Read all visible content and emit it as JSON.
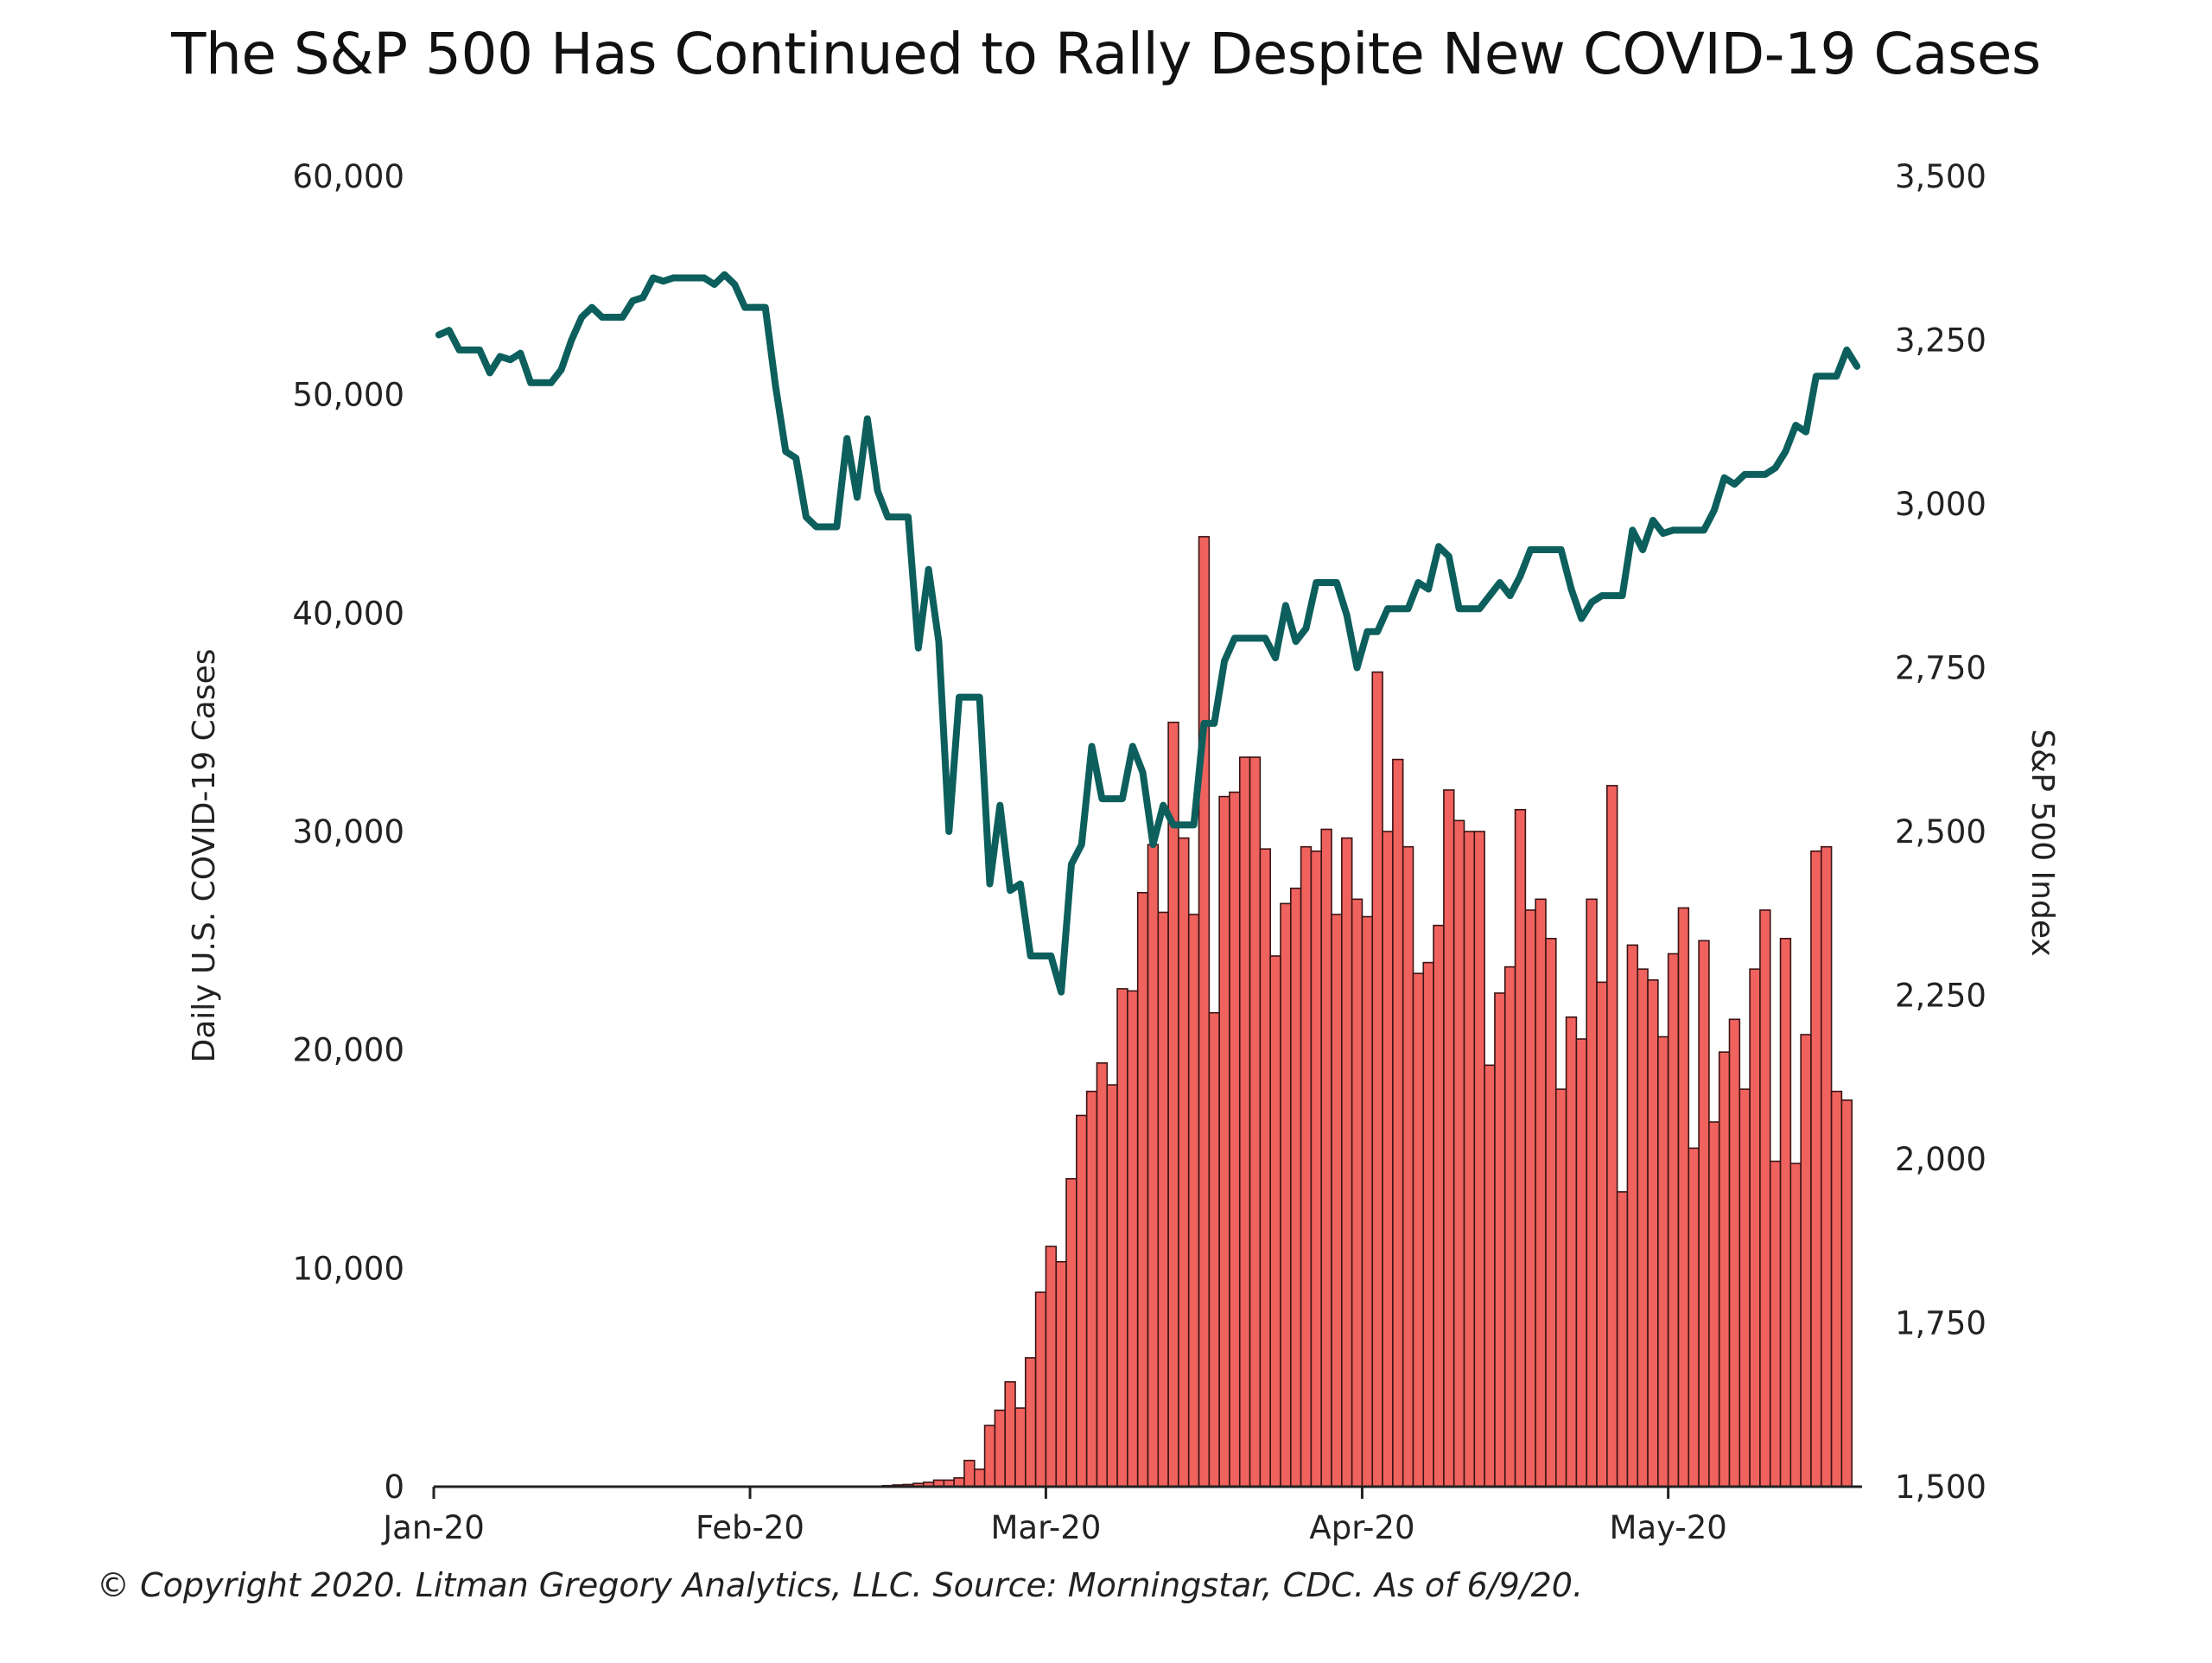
{
  "title": "The S&P 500 Has Continued to Rally Despite New COVID-19 Cases",
  "footer": "© Copyright 2020. Litman Gregory Analytics, LLC. Source: Morningstar, CDC. As of 6/9/20.",
  "colors": {
    "bar_fill": "#f0625e",
    "bar_stroke": "#3a1414",
    "line": "#0c5f5c",
    "axis": "#222222"
  },
  "chart_data": {
    "type": "bar+line",
    "title": "The S&P 500 Has Continued to Rally Despite New COVID-19 Cases",
    "x_tick_labels": [
      "Jan-20",
      "Feb-20",
      "Mar-20",
      "Apr-20",
      "May-20"
    ],
    "x_tick_index": [
      0,
      31,
      60,
      91,
      121
    ],
    "n_days": 140,
    "left_axis": {
      "label": "Daily U.S. COVID-19 Cases",
      "min": 0,
      "max": 60000,
      "ticks": [
        0,
        10000,
        20000,
        30000,
        40000,
        50000,
        60000
      ],
      "tick_labels": [
        "0",
        "10,000",
        "20,000",
        "30,000",
        "40,000",
        "50,000",
        "60,000"
      ]
    },
    "right_axis": {
      "label": "S&P 500 Index",
      "min": 1500,
      "max": 3500,
      "ticks": [
        1500,
        1750,
        2000,
        2250,
        2500,
        2750,
        3000,
        3250,
        3500
      ],
      "tick_labels": [
        "1,500",
        "1,750",
        "2,000",
        "2,250",
        "2,500",
        "2,750",
        "3,000",
        "3,250",
        "3,500"
      ]
    },
    "bars": {
      "name": "Daily U.S. COVID-19 Cases",
      "start_index": 44,
      "values": [
        50,
        80,
        100,
        150,
        200,
        300,
        300,
        400,
        1200,
        800,
        2800,
        3500,
        4800,
        3600,
        5900,
        8900,
        11000,
        10300,
        14100,
        17000,
        18100,
        19400,
        18400,
        22800,
        22700,
        27200,
        29400,
        26300,
        35000,
        29700,
        26200,
        43500,
        21700,
        31600,
        31800,
        33400,
        33400,
        29200,
        24300,
        26700,
        27400,
        29300,
        29100,
        30100,
        26200,
        29700,
        26900,
        26100,
        37300,
        30000,
        33300,
        29300,
        23500,
        24000,
        25700,
        31900,
        30500,
        30000,
        30000,
        19300,
        22600,
        23800,
        31000,
        26400,
        26900,
        25100,
        18200,
        21500,
        20500,
        26900,
        23100,
        32100,
        13500,
        24800,
        23700,
        23200,
        20600,
        24400,
        26500,
        15500,
        25000,
        16700,
        19900,
        21400,
        18200,
        23700,
        26400,
        14900,
        25100,
        14800,
        20700,
        29100,
        29300,
        18100,
        17700
      ]
    },
    "line": {
      "name": "S&P 500 Index",
      "values": [
        3258,
        3265,
        3235,
        3235,
        3235,
        3200,
        3225,
        3220,
        3230,
        3185,
        3185,
        3185,
        3205,
        3250,
        3285,
        3300,
        3285,
        3285,
        3285,
        3310,
        3315,
        3345,
        3340,
        3345,
        3345,
        3345,
        3345,
        3335,
        3350,
        3335,
        3300,
        3300,
        3300,
        3180,
        3080,
        3070,
        2980,
        2965,
        2965,
        2965,
        3100,
        3010,
        3130,
        3020,
        2980,
        2980,
        2980,
        2780,
        2900,
        2790,
        2500,
        2705,
        2705,
        2705,
        2420,
        2540,
        2410,
        2420,
        2310,
        2310,
        2310,
        2255,
        2450,
        2480,
        2630,
        2550,
        2550,
        2550,
        2630,
        2590,
        2480,
        2540,
        2510,
        2510,
        2510,
        2665,
        2665,
        2760,
        2795,
        2795,
        2795,
        2795,
        2765,
        2845,
        2790,
        2810,
        2880,
        2880,
        2880,
        2830,
        2750,
        2805,
        2805,
        2840,
        2840,
        2840,
        2880,
        2870,
        2935,
        2920,
        2840,
        2840,
        2840,
        2860,
        2880,
        2860,
        2890,
        2930,
        2930,
        2930,
        2930,
        2870,
        2825,
        2850,
        2860,
        2860,
        2860,
        2960,
        2930,
        2975,
        2955,
        2960,
        2960,
        2960,
        2960,
        2990,
        3040,
        3030,
        3045,
        3045,
        3045,
        3055,
        3080,
        3120,
        3110,
        3195,
        3195,
        3195,
        3235,
        3210
      ]
    }
  }
}
